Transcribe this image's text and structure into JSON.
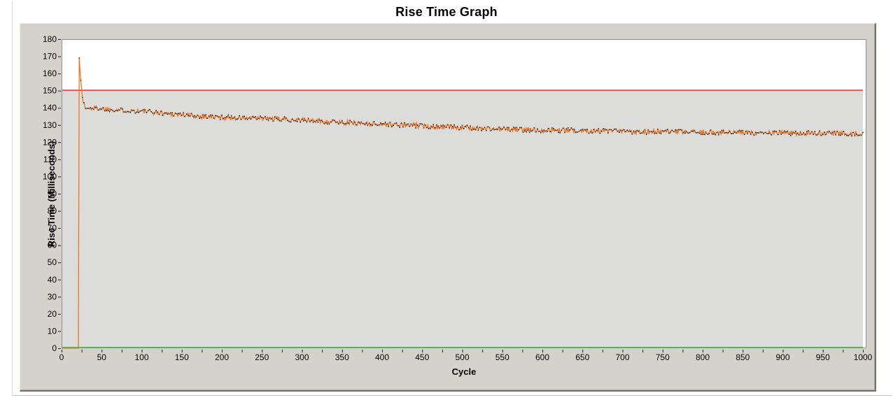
{
  "page": {
    "title": "Rise Time Graph"
  },
  "chart_data": {
    "type": "line",
    "title": "Rise Time Graph",
    "xlabel": "Cycle",
    "ylabel": "Rise Time (Milliseconds)",
    "xlim": [
      0,
      1000
    ],
    "ylim": [
      0,
      180
    ],
    "x_major_tick_step": 50,
    "x_minor_tick_step": 25,
    "y_major_tick_step": 10,
    "grid": false,
    "legend": "none",
    "plot_background_color": "#ffffff",
    "panel_color": "#d5d2cc",
    "box_border_color": "#8f8f8f",
    "threshold_line": {
      "name": "upper-limit-line",
      "value": 150,
      "color": "#f25151",
      "fill_below_color": "#dcdcda"
    },
    "baseline": {
      "name": "zero-baseline",
      "value": 0,
      "color": "#0ce20c"
    },
    "series": [
      {
        "name": "rise-time",
        "line_color": "#ee7420",
        "point_color": "#1b1b1b",
        "noise_amplitude": 1.5,
        "spike": {
          "cycle": 22,
          "peak": 169
        },
        "trend": [
          [
            0,
            0
          ],
          [
            21,
            0
          ],
          [
            22,
            169
          ],
          [
            23,
            162
          ],
          [
            24,
            156
          ],
          [
            25,
            151
          ],
          [
            26,
            147
          ],
          [
            27,
            144
          ],
          [
            28,
            142
          ],
          [
            29,
            140.5
          ],
          [
            30,
            139.8
          ],
          [
            35,
            139.5
          ],
          [
            40,
            140
          ],
          [
            50,
            139.5
          ],
          [
            60,
            139.2
          ],
          [
            80,
            138.6
          ],
          [
            100,
            138
          ],
          [
            125,
            137
          ],
          [
            150,
            136
          ],
          [
            175,
            135
          ],
          [
            200,
            134.5
          ],
          [
            225,
            134
          ],
          [
            250,
            133.8
          ],
          [
            275,
            133.4
          ],
          [
            300,
            133
          ],
          [
            325,
            132.2
          ],
          [
            350,
            131.5
          ],
          [
            375,
            131
          ],
          [
            400,
            130.5
          ],
          [
            425,
            130
          ],
          [
            450,
            129.5
          ],
          [
            475,
            129
          ],
          [
            500,
            128.5
          ],
          [
            525,
            128
          ],
          [
            550,
            127.5
          ],
          [
            575,
            127.2
          ],
          [
            600,
            127
          ],
          [
            625,
            126.9
          ],
          [
            650,
            126.8
          ],
          [
            675,
            126.5
          ],
          [
            700,
            126.3
          ],
          [
            725,
            126.1
          ],
          [
            750,
            126
          ],
          [
            775,
            125.9
          ],
          [
            800,
            125.8
          ],
          [
            825,
            125.6
          ],
          [
            850,
            125.5
          ],
          [
            875,
            125.4
          ],
          [
            900,
            125.3
          ],
          [
            925,
            125.2
          ],
          [
            950,
            125.2
          ],
          [
            975,
            125.1
          ],
          [
            1000,
            125
          ]
        ]
      }
    ]
  }
}
